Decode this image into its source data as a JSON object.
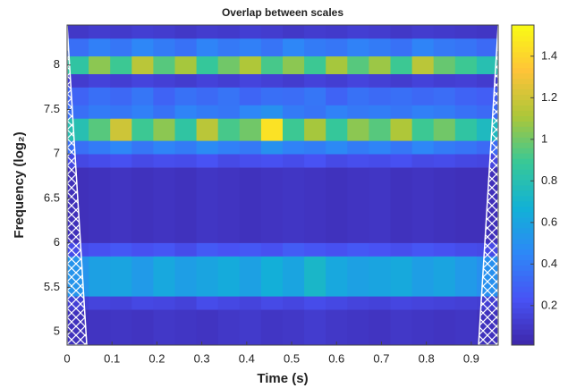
{
  "chart_data": {
    "type": "heatmap",
    "title": "Overlap between scales",
    "xlabel": "Time (s)",
    "ylabel": "Frequency (log₂)",
    "colormap": "parula",
    "xlim": [
      0,
      0.96
    ],
    "ylim": [
      4.85,
      8.45
    ],
    "xticks": [
      0,
      0.1,
      0.2,
      0.3,
      0.4,
      0.5,
      0.6,
      0.7,
      0.8,
      0.9
    ],
    "yticks": [
      5,
      5.5,
      6,
      6.5,
      7,
      7.5,
      8
    ],
    "clim": [
      0.01,
      1.55
    ],
    "cticks": [
      0.2,
      0.4,
      0.6,
      0.8,
      1,
      1.2,
      1.4
    ],
    "x_edges": [
      0,
      0.048,
      0.096,
      0.144,
      0.192,
      0.24,
      0.288,
      0.336,
      0.384,
      0.432,
      0.48,
      0.528,
      0.576,
      0.624,
      0.672,
      0.72,
      0.768,
      0.816,
      0.864,
      0.912,
      0.96
    ],
    "y_edges": [
      4.85,
      5.25,
      5.4,
      5.85,
      6.0,
      6.85,
      7.0,
      7.15,
      7.4,
      7.55,
      7.75,
      7.9,
      8.1,
      8.3,
      8.45
    ],
    "values": [
      [
        0.07,
        0.08,
        0.09,
        0.08,
        0.1,
        0.09,
        0.08,
        0.1,
        0.11,
        0.09,
        0.1,
        0.12,
        0.1,
        0.09,
        0.08,
        0.1,
        0.09,
        0.08,
        0.09,
        0.07
      ],
      [
        0.14,
        0.16,
        0.15,
        0.18,
        0.17,
        0.15,
        0.2,
        0.18,
        0.16,
        0.19,
        0.17,
        0.2,
        0.18,
        0.16,
        0.15,
        0.17,
        0.16,
        0.15,
        0.14,
        0.13
      ],
      [
        0.52,
        0.58,
        0.6,
        0.55,
        0.62,
        0.57,
        0.6,
        0.64,
        0.58,
        0.66,
        0.6,
        0.72,
        0.62,
        0.58,
        0.6,
        0.63,
        0.57,
        0.6,
        0.55,
        0.5
      ],
      [
        0.2,
        0.22,
        0.25,
        0.22,
        0.24,
        0.2,
        0.26,
        0.23,
        0.25,
        0.22,
        0.27,
        0.24,
        0.22,
        0.25,
        0.23,
        0.21,
        0.24,
        0.22,
        0.2,
        0.19
      ],
      [
        0.06,
        0.07,
        0.08,
        0.07,
        0.08,
        0.07,
        0.09,
        0.08,
        0.07,
        0.08,
        0.09,
        0.08,
        0.07,
        0.08,
        0.09,
        0.07,
        0.08,
        0.07,
        0.06,
        0.06
      ],
      [
        0.18,
        0.2,
        0.22,
        0.19,
        0.21,
        0.2,
        0.23,
        0.19,
        0.21,
        0.22,
        0.2,
        0.23,
        0.19,
        0.21,
        0.2,
        0.22,
        0.19,
        0.2,
        0.18,
        0.17
      ],
      [
        0.35,
        0.4,
        0.45,
        0.38,
        0.44,
        0.4,
        0.47,
        0.42,
        0.39,
        0.5,
        0.43,
        0.41,
        0.46,
        0.4,
        0.44,
        0.38,
        0.45,
        0.4,
        0.37,
        0.33
      ],
      [
        0.8,
        0.95,
        1.2,
        0.9,
        1.05,
        0.85,
        1.15,
        0.92,
        1.0,
        1.45,
        0.9,
        1.1,
        0.88,
        1.05,
        0.95,
        1.12,
        0.9,
        1.0,
        0.85,
        0.75
      ],
      [
        0.35,
        0.4,
        0.38,
        0.42,
        0.36,
        0.44,
        0.4,
        0.38,
        0.45,
        0.5,
        0.4,
        0.37,
        0.43,
        0.39,
        0.41,
        0.38,
        0.42,
        0.4,
        0.36,
        0.33
      ],
      [
        0.3,
        0.35,
        0.32,
        0.38,
        0.3,
        0.36,
        0.33,
        0.37,
        0.31,
        0.35,
        0.34,
        0.38,
        0.3,
        0.36,
        0.33,
        0.35,
        0.32,
        0.34,
        0.3,
        0.28
      ],
      [
        0.12,
        0.15,
        0.13,
        0.16,
        0.14,
        0.12,
        0.15,
        0.13,
        0.16,
        0.14,
        0.12,
        0.15,
        0.13,
        0.16,
        0.14,
        0.12,
        0.15,
        0.13,
        0.14,
        0.12
      ],
      [
        0.85,
        1.05,
        0.9,
        1.15,
        0.95,
        1.1,
        0.88,
        1.0,
        1.12,
        0.92,
        1.05,
        0.9,
        1.1,
        0.95,
        1.08,
        0.9,
        1.15,
        0.98,
        0.9,
        0.8
      ],
      [
        0.35,
        0.42,
        0.38,
        0.45,
        0.4,
        0.36,
        0.44,
        0.39,
        0.42,
        0.37,
        0.45,
        0.4,
        0.38,
        0.43,
        0.4,
        0.36,
        0.44,
        0.39,
        0.37,
        0.33
      ],
      [
        0.1,
        0.12,
        0.11,
        0.13,
        0.12,
        0.1,
        0.12,
        0.11,
        0.13,
        0.12,
        0.1,
        0.12,
        0.11,
        0.13,
        0.12,
        0.1,
        0.12,
        0.11,
        0.1,
        0.09
      ]
    ]
  }
}
